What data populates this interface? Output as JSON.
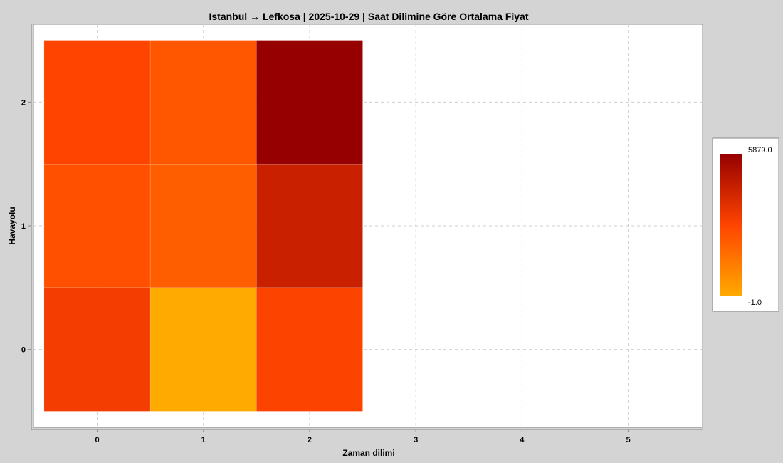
{
  "chart_data": {
    "type": "heatmap",
    "title": "Istanbul → Lefkosa | 2025-10-29 | Saat Dilimine Göre Ortalama Fiyat",
    "xlabel": "Zaman dilimi",
    "ylabel": "Havayolu",
    "x_ticks": [
      "0",
      "1",
      "2",
      "3",
      "4",
      "5"
    ],
    "y_ticks": [
      "0",
      "1",
      "2"
    ],
    "xlim": [
      -0.6,
      5.7
    ],
    "ylim": [
      -0.63,
      2.63
    ],
    "grid": true,
    "legend_position": "right",
    "colorbar": {
      "min": -1.0,
      "max": 5879.0,
      "min_label": "-1.0",
      "max_label": "5879.0"
    },
    "colormap": [
      "#ffaa00",
      "#ff4400",
      "#960000"
    ],
    "cells": [
      {
        "x": 0,
        "y": 0,
        "value": 3250
      },
      {
        "x": 1,
        "y": 0,
        "value": -1
      },
      {
        "x": 2,
        "y": 0,
        "value": 3000
      },
      {
        "x": 0,
        "y": 1,
        "value": 2600
      },
      {
        "x": 1,
        "y": 1,
        "value": 2200
      },
      {
        "x": 2,
        "y": 1,
        "value": 4450
      },
      {
        "x": 0,
        "y": 2,
        "value": 2950
      },
      {
        "x": 1,
        "y": 2,
        "value": 2400
      },
      {
        "x": 2,
        "y": 2,
        "value": 5879
      }
    ]
  }
}
